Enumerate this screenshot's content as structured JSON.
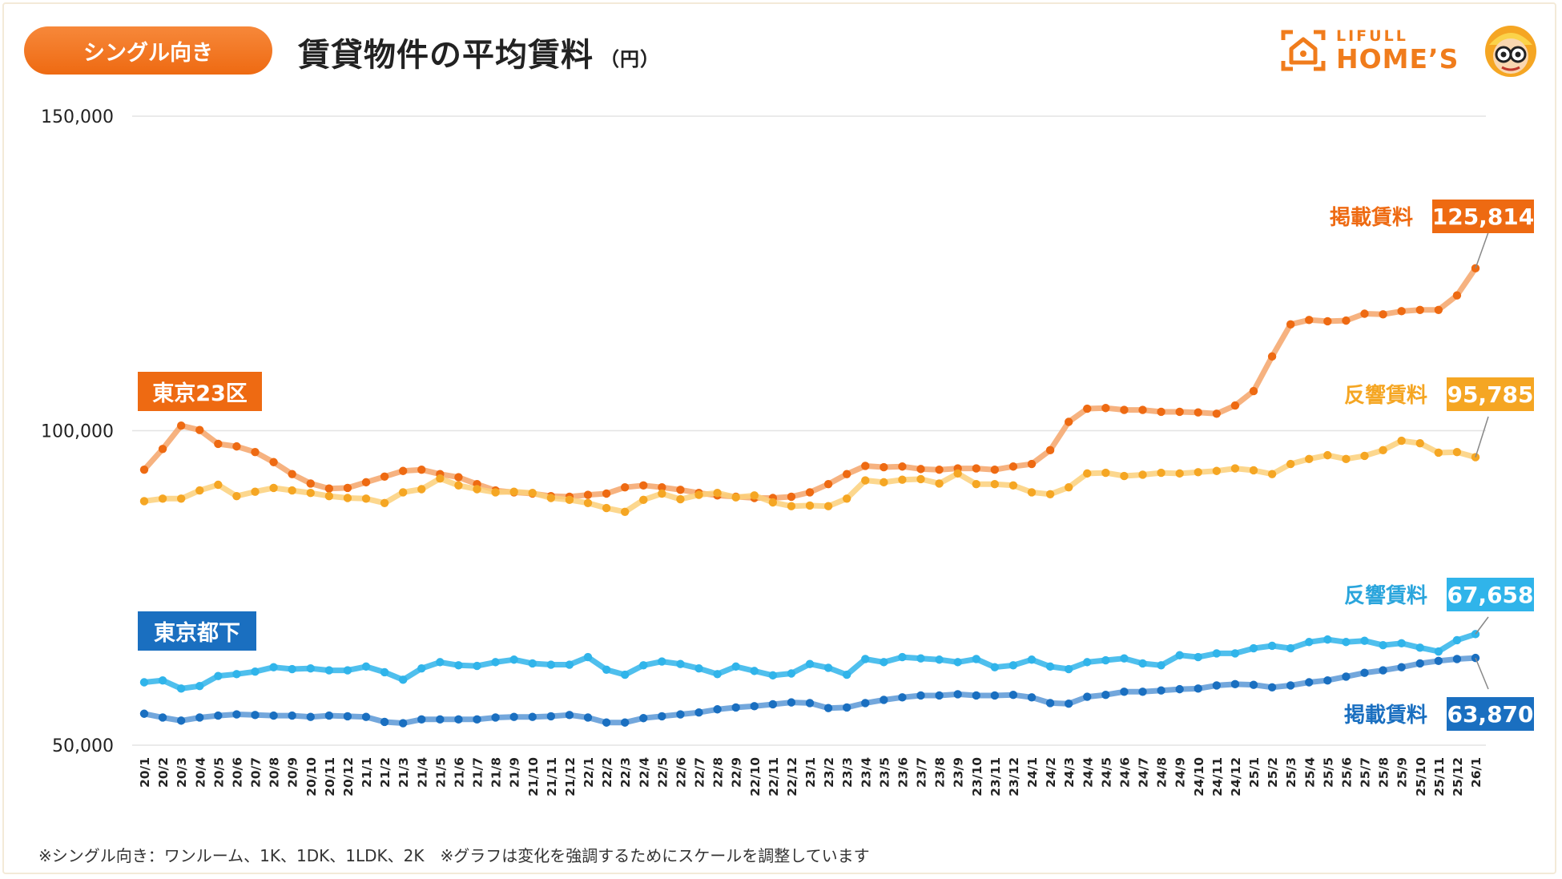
{
  "header": {
    "badge": "シングル向き",
    "title": "賃貸物件の平均賃料",
    "unit": "（円）",
    "logo_line1": "LIFULL",
    "logo_line2": "HOME’S"
  },
  "footnote": "※シングル向き：ワンルーム、1K、1DK、1LDK、2K　※グラフは変化を強調するためにスケールを調整しています",
  "colors": {
    "orange": "#ee6a12",
    "orange_light": "#f5a46a",
    "yellow": "#f5a623",
    "yellow_light": "#fbd07a",
    "blue": "#1a6fc0",
    "blue_light": "#30b4ea",
    "badge": "#f07c1c"
  },
  "region_labels": {
    "tokyo23": "東京23区",
    "tokyo_other": "東京都下"
  },
  "chart_data": {
    "type": "line",
    "title": "賃貸物件の平均賃料（円）",
    "xlabel": "",
    "ylabel": "",
    "ylim": [
      50000,
      150000
    ],
    "y_ticks": [
      "150,000",
      "100,000",
      "50,000"
    ],
    "y_tick_values": [
      150000,
      100000,
      50000
    ],
    "categories": [
      "20/1",
      "20/2",
      "20/3",
      "20/4",
      "20/5",
      "20/6",
      "20/7",
      "20/8",
      "20/9",
      "20/10",
      "20/11",
      "20/12",
      "21/1",
      "21/2",
      "21/3",
      "21/4",
      "21/5",
      "21/6",
      "21/7",
      "21/8",
      "21/9",
      "21/10",
      "21/11",
      "21/12",
      "22/1",
      "22/2",
      "22/3",
      "22/4",
      "22/5",
      "22/6",
      "22/7",
      "22/8",
      "22/9",
      "22/10",
      "22/11",
      "22/12",
      "23/1",
      "23/2",
      "23/3",
      "23/4",
      "23/5",
      "23/6",
      "23/7",
      "23/8",
      "23/9",
      "23/10",
      "23/11",
      "23/12",
      "24/1",
      "24/2",
      "24/3",
      "24/4",
      "24/5",
      "24/6",
      "24/7",
      "24/8",
      "24/9",
      "24/10",
      "24/11",
      "24/12",
      "25/1",
      "25/2",
      "25/3",
      "25/4",
      "25/5",
      "25/6",
      "25/7",
      "25/8",
      "25/9",
      "25/10",
      "25/11",
      "25/12",
      "26/1"
    ],
    "series": [
      {
        "name": "東京23区 掲載賃料",
        "label": "掲載賃料",
        "end_value": "125,814",
        "values": [
          93800,
          97100,
          100800,
          100100,
          97900,
          97500,
          96600,
          95000,
          93100,
          91600,
          90800,
          90900,
          91800,
          92700,
          93600,
          93800,
          93100,
          92600,
          91500,
          90500,
          90200,
          90000,
          89600,
          89500,
          89800,
          90000,
          91000,
          91300,
          91000,
          90600,
          90100,
          89700,
          89500,
          89300,
          89300,
          89500,
          90200,
          91500,
          93100,
          94400,
          94200,
          94300,
          93900,
          93800,
          94000,
          94000,
          93800,
          94300,
          94700,
          96900,
          101400,
          103500,
          103600,
          103300,
          103300,
          103000,
          103000,
          102900,
          102700,
          104000,
          106300,
          111800,
          116900,
          117600,
          117400,
          117500,
          118600,
          118500,
          119000,
          119200,
          119200,
          121500,
          125814
        ]
      },
      {
        "name": "東京23区 反響賃料",
        "label": "反響賃料",
        "end_value": "95,785",
        "values": [
          88800,
          89200,
          89200,
          90500,
          91400,
          89600,
          90300,
          90900,
          90500,
          90100,
          89600,
          89300,
          89200,
          88500,
          90200,
          90700,
          92400,
          91300,
          90700,
          90200,
          90300,
          90100,
          89300,
          89000,
          88500,
          87700,
          87100,
          89000,
          90000,
          89100,
          89800,
          90100,
          89400,
          89700,
          88600,
          88000,
          88100,
          88000,
          89200,
          92100,
          91800,
          92200,
          92300,
          91600,
          93200,
          91500,
          91500,
          91300,
          90200,
          89900,
          91000,
          93200,
          93300,
          92800,
          93000,
          93300,
          93200,
          93400,
          93600,
          94000,
          93700,
          93100,
          94700,
          95500,
          96100,
          95500,
          96000,
          96900,
          98400,
          98000,
          96500,
          96600,
          95785
        ]
      },
      {
        "name": "東京都下 反響賃料",
        "label": "反響賃料",
        "end_value": "67,658",
        "values": [
          60000,
          60300,
          59000,
          59400,
          61000,
          61300,
          61700,
          62400,
          62100,
          62200,
          61900,
          61900,
          62500,
          61600,
          60400,
          62200,
          63200,
          62700,
          62600,
          63200,
          63600,
          63000,
          62800,
          62800,
          64000,
          62000,
          61200,
          62700,
          63300,
          62900,
          62200,
          61300,
          62500,
          61800,
          61100,
          61400,
          62900,
          62300,
          61200,
          63700,
          63200,
          64000,
          63800,
          63600,
          63200,
          63700,
          62400,
          62700,
          63600,
          62500,
          62100,
          63200,
          63500,
          63800,
          63000,
          62700,
          64300,
          64000,
          64600,
          64600,
          65400,
          65800,
          65400,
          66400,
          66800,
          66400,
          66600,
          65900,
          66200,
          65500,
          64900,
          66700,
          67658
        ]
      },
      {
        "name": "東京都下 掲載賃料",
        "label": "掲載賃料",
        "end_value": "63,870",
        "values": [
          55000,
          54400,
          53900,
          54400,
          54700,
          54900,
          54800,
          54700,
          54700,
          54500,
          54700,
          54600,
          54500,
          53700,
          53500,
          54100,
          54100,
          54100,
          54100,
          54400,
          54500,
          54500,
          54600,
          54800,
          54400,
          53600,
          53600,
          54300,
          54600,
          54900,
          55200,
          55700,
          56000,
          56200,
          56500,
          56800,
          56700,
          55900,
          56000,
          56700,
          57200,
          57600,
          57900,
          57900,
          58100,
          57900,
          57900,
          58000,
          57600,
          56700,
          56600,
          57700,
          58000,
          58500,
          58500,
          58700,
          58900,
          59000,
          59500,
          59700,
          59600,
          59200,
          59500,
          60000,
          60300,
          60900,
          61500,
          61900,
          62400,
          63000,
          63400,
          63700,
          63870
        ]
      }
    ]
  }
}
